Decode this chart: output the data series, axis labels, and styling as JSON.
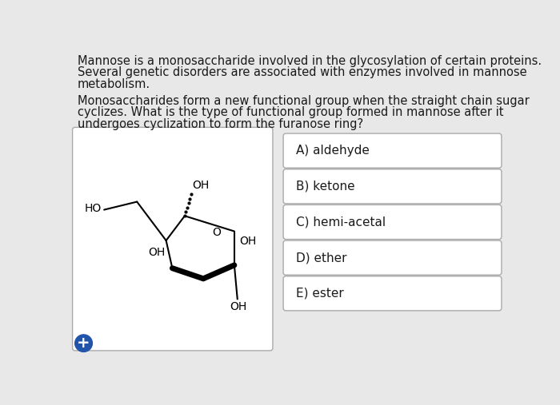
{
  "background_color": "#e8e8e8",
  "panel_color": "#ffffff",
  "text_color": "#1a1a1a",
  "title_text_1": "Mannose is a monosaccharide involved in the glycosylation of certain proteins.",
  "title_text_2": "Several genetic disorders are associated with enzymes involved in mannose",
  "title_text_3": "metabolism.",
  "question_text_1": "Monosaccharides form a new functional group when the straight chain sugar",
  "question_text_2": "cyclizes. What is the type of functional group formed in mannose after it",
  "question_text_3": "undergoes cyclization to form the furanose ring?",
  "answer_options": [
    "A) aldehyde",
    "B) ketone",
    "C) hemi-acetal",
    "D) ether",
    "E) ester"
  ],
  "font_size_text": 10.5,
  "font_size_answers": 11,
  "font_size_mol": 10,
  "plus_sign": "+"
}
